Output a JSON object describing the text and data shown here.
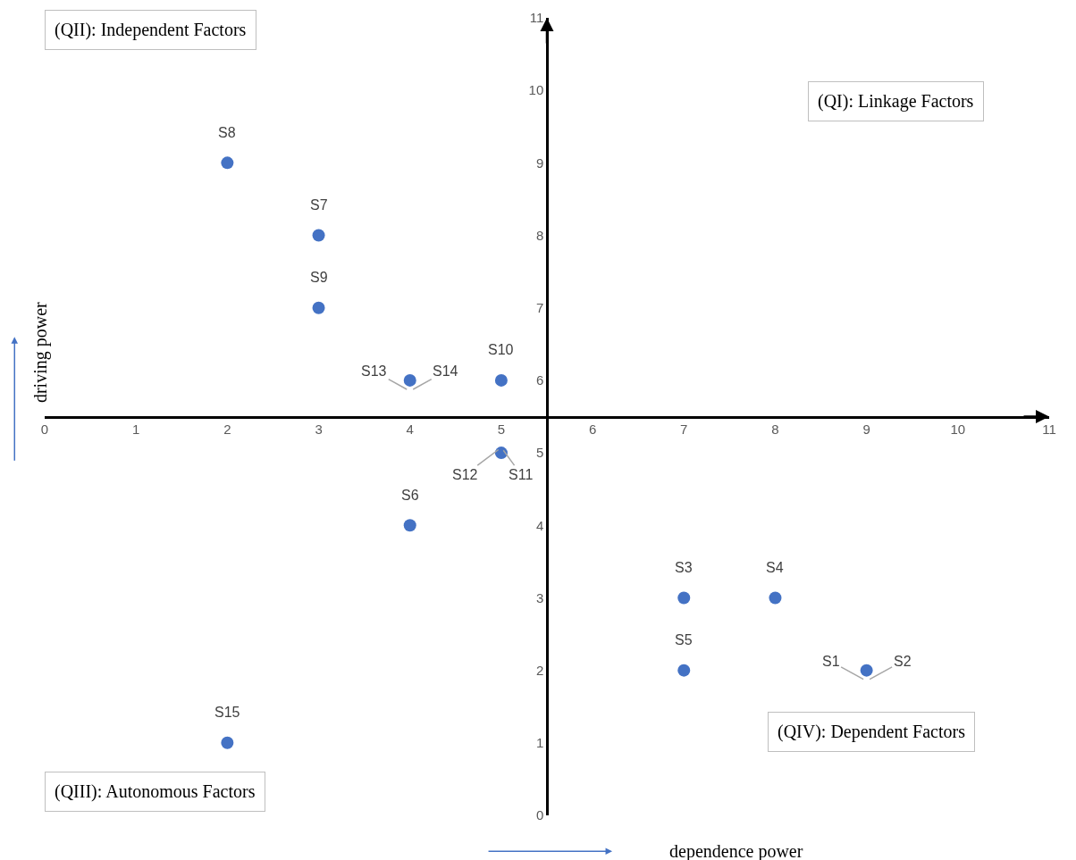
{
  "chart_data": {
    "type": "scatter",
    "xlabel": "dependence power",
    "ylabel": "driving power",
    "x": [
      2,
      3,
      3,
      4,
      5,
      5,
      4,
      7,
      8,
      7,
      9,
      2
    ],
    "series": [
      {
        "color": "#4472c4",
        "values": [
          9,
          8,
          7,
          6,
          6,
          5,
          4,
          3,
          3,
          2,
          2,
          1
        ]
      }
    ],
    "marker": "circle",
    "xlim": [
      0,
      11
    ],
    "ylim": [
      0,
      11
    ],
    "xticks": [
      0,
      1,
      2,
      3,
      4,
      5,
      6,
      7,
      8,
      9,
      10,
      11
    ],
    "yticks": [
      0,
      1,
      2,
      3,
      4,
      5,
      6,
      7,
      8,
      9,
      10,
      11
    ],
    "annotations": [
      "(QII): Independent Factors",
      "(QI): Linkage Factors",
      "(QIII): Autonomous Factors",
      "(QIV): Dependent Factors",
      {
        "text": "S8",
        "x": 2,
        "y": 9
      },
      {
        "text": "S7",
        "x": 3,
        "y": 8
      },
      {
        "text": "S9",
        "x": 3,
        "y": 7
      },
      {
        "text": "S13",
        "x": 4,
        "y": 6
      },
      {
        "text": "S14",
        "x": 4,
        "y": 6
      },
      {
        "text": "S10",
        "x": 5,
        "y": 6
      },
      {
        "text": "S12",
        "x": 5,
        "y": 5
      },
      {
        "text": "S11",
        "x": 5,
        "y": 5
      },
      {
        "text": "S6",
        "x": 4,
        "y": 4
      },
      {
        "text": "S3",
        "x": 7,
        "y": 3
      },
      {
        "text": "S4",
        "x": 8,
        "y": 3
      },
      {
        "text": "S5",
        "x": 7,
        "y": 2
      },
      {
        "text": "S1",
        "x": 9,
        "y": 2
      },
      {
        "text": "S2",
        "x": 9,
        "y": 2
      },
      {
        "text": "S15",
        "x": 2,
        "y": 1
      }
    ]
  }
}
